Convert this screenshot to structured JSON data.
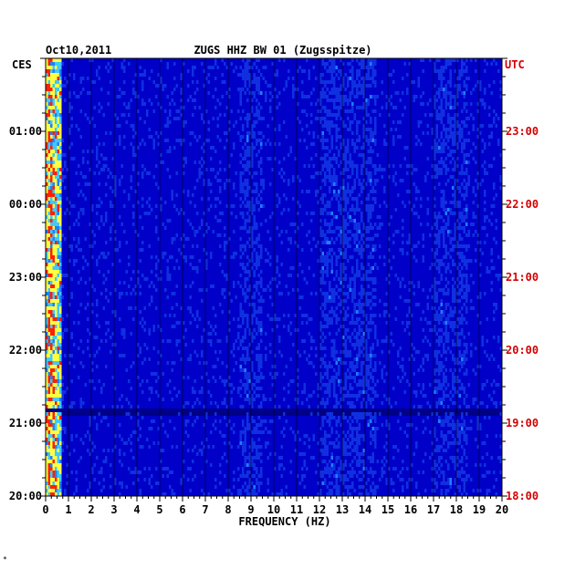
{
  "chart_data": {
    "type": "heatmap",
    "date": "Oct10,2011",
    "title": "ZUGS HHZ BW 01 (Zugsspitze)",
    "left_zone": "CES",
    "right_zone": "UTC",
    "xlabel": "FREQUENCY (HZ)",
    "x_range": [
      0,
      20
    ],
    "x_ticks": [
      "0",
      "1",
      "2",
      "3",
      "4",
      "5",
      "6",
      "7",
      "8",
      "9",
      "10",
      "11",
      "12",
      "13",
      "14",
      "15",
      "16",
      "17",
      "18",
      "19",
      "20"
    ],
    "left_time_ticks": [
      "01:00",
      "00:00",
      "23:00",
      "22:00",
      "21:00",
      "20:00"
    ],
    "right_time_ticks": [
      "23:00",
      "22:00",
      "21:00",
      "20:00",
      "19:00",
      "18:00"
    ],
    "hours_spanned": 6,
    "footnote": "*",
    "colors": {
      "background": "#0000c8",
      "low": "#1030e0",
      "mid": "#40c8ff",
      "high": "#ffff40",
      "peak": "#ff2000",
      "utc_label": "#d40000",
      "grid": "#000000"
    },
    "notes": {
      "low_freq_energy_hz": [
        0.1,
        0.6
      ],
      "banded_energy_hz": [
        [
          8.5,
          9.5
        ],
        [
          12,
          14.5
        ],
        [
          17,
          18.5
        ]
      ],
      "data_gap_fraction_from_top": 0.8
    }
  }
}
